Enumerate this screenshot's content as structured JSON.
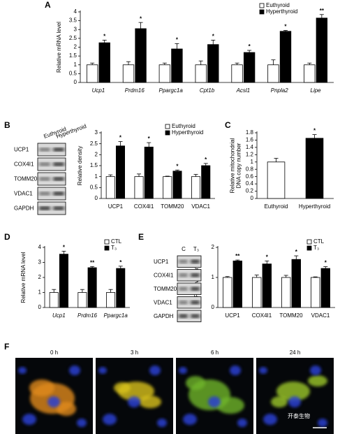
{
  "chart_data": [
    {
      "type": "bar",
      "panel": "A",
      "ylabel": [
        "Relative mRNA level"
      ],
      "italic_categories": true,
      "categories": [
        "Ucp1",
        "Prdm16",
        "Ppargc1a",
        "Cpt1b",
        "Acsl1",
        "Pnpla2",
        "Lipe"
      ],
      "series": [
        {
          "name": "Euthyroid",
          "color": "#ffffff",
          "values": [
            1,
            1,
            1,
            1,
            1,
            1,
            1
          ],
          "errors": [
            0.1,
            0.18,
            0.1,
            0.22,
            0.1,
            0.28,
            0.1
          ]
        },
        {
          "name": "Hyperthyroid",
          "color": "#000000",
          "values": [
            2.25,
            3.05,
            1.9,
            2.15,
            1.7,
            2.9,
            3.65
          ],
          "errors": [
            0.15,
            0.35,
            0.3,
            0.25,
            0.12,
            0.05,
            0.2
          ]
        }
      ],
      "significance": [
        "*",
        "*",
        "*",
        "*",
        "*",
        "*",
        "**"
      ],
      "ylim": [
        0,
        4
      ],
      "yticks": [
        0,
        0.5,
        1,
        1.5,
        2,
        2.5,
        3,
        3.5,
        4
      ]
    },
    {
      "type": "bar",
      "panel": "B",
      "ylabel": [
        "Relative density"
      ],
      "italic_categories": false,
      "categories": [
        "UCP1",
        "COX4I1",
        "TOMM20",
        "VDAC1"
      ],
      "series": [
        {
          "name": "Euthyroid",
          "color": "#ffffff",
          "values": [
            1,
            1,
            1,
            1
          ],
          "errors": [
            0.08,
            0.12,
            0.02,
            0.1
          ]
        },
        {
          "name": "Hyperthyroid",
          "color": "#000000",
          "values": [
            2.4,
            2.35,
            1.25,
            1.5
          ],
          "errors": [
            0.2,
            0.2,
            0.05,
            0.1
          ]
        }
      ],
      "significance": [
        "*",
        "*",
        "*",
        "*"
      ],
      "ylim": [
        0,
        3
      ],
      "yticks": [
        0,
        0.5,
        1,
        1.5,
        2,
        2.5,
        3
      ]
    },
    {
      "type": "bar",
      "panel": "C",
      "ylabel": [
        "Relative mitochondrial",
        "DNA copy number"
      ],
      "italic_categories": false,
      "categories": [
        "Euthyroid",
        "Hyperthyroid"
      ],
      "colors": [
        "#ffffff",
        "#000000"
      ],
      "values": [
        1,
        1.65
      ],
      "errors": [
        0.1,
        0.1
      ],
      "significance": [
        null,
        "*"
      ],
      "ylim": [
        0,
        1.8
      ],
      "yticks": [
        0,
        0.2,
        0.4,
        0.6,
        0.8,
        1,
        1.2,
        1.4,
        1.6,
        1.8
      ]
    },
    {
      "type": "bar",
      "panel": "D",
      "ylabel": [
        "Relative mRNA level"
      ],
      "italic_categories": true,
      "categories": [
        "Ucp1",
        "Prdm16",
        "Ppargc1a"
      ],
      "series": [
        {
          "name": "CTL",
          "color": "#ffffff",
          "values": [
            1,
            1,
            1
          ],
          "errors": [
            0.2,
            0.2,
            0.2
          ]
        },
        {
          "name": "T₃",
          "color": "#000000",
          "values": [
            3.55,
            2.65,
            2.6
          ],
          "errors": [
            0.2,
            0.08,
            0.15
          ]
        }
      ],
      "significance": [
        "*",
        "**",
        "*"
      ],
      "ylim": [
        0,
        4
      ],
      "yticks": [
        0,
        1,
        2,
        3,
        4
      ]
    },
    {
      "type": "bar",
      "panel": "E",
      "ylabel": [
        "Relative density"
      ],
      "italic_categories": false,
      "categories": [
        "UCP1",
        "COX4I1",
        "TOMM20",
        "VDAC1"
      ],
      "series": [
        {
          "name": "CTL",
          "color": "#ffffff",
          "values": [
            1,
            1,
            1,
            1
          ],
          "errors": [
            0.03,
            0.08,
            0.07,
            0.02
          ]
        },
        {
          "name": "T₃",
          "color": "#000000",
          "values": [
            1.55,
            1.45,
            1.6,
            1.3
          ],
          "errors": [
            0.03,
            0.1,
            0.12,
            0.06
          ]
        }
      ],
      "significance": [
        "**",
        "*",
        "*",
        "*"
      ],
      "ylim": [
        0,
        2
      ],
      "yticks": [
        0,
        1,
        2
      ]
    }
  ],
  "blots": [
    {
      "lanes": [
        "Euthyroid",
        "Hyperthyroid"
      ],
      "rows": [
        "UCP1",
        "COX4I1",
        "TOMM20",
        "VDAC1",
        "GAPDH"
      ]
    },
    {
      "lanes": [
        "C",
        "T₃"
      ],
      "rows": [
        "UCP1",
        "COX4I1",
        "TOMM20",
        "VDAC1",
        "GAPDH"
      ]
    }
  ],
  "micrographs": {
    "panel": "F",
    "times": [
      "0 h",
      "3 h",
      "6 h",
      "24 h"
    ]
  },
  "watermark": "开泰生物"
}
